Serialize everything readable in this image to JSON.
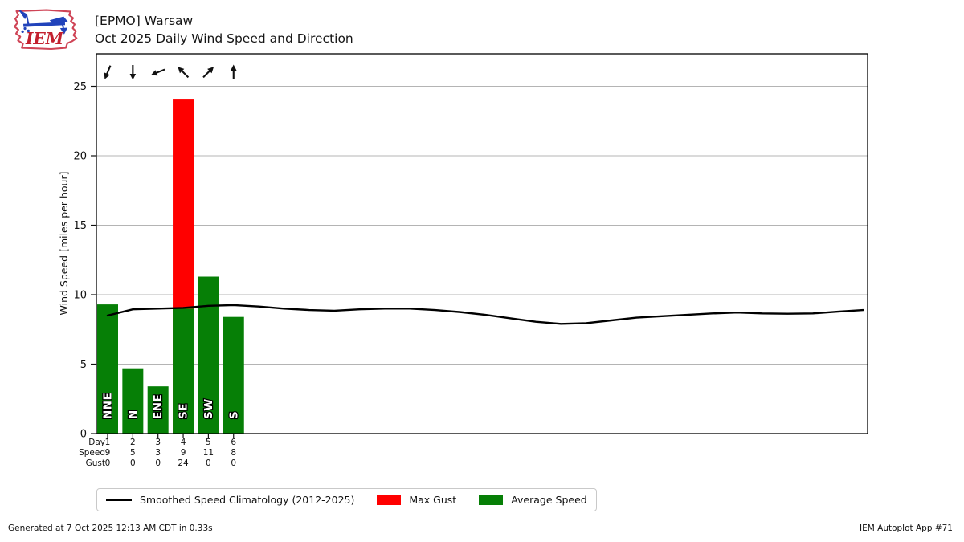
{
  "header": {
    "logo_text": "IEM",
    "title_line1": "[EPMO] Warsaw",
    "title_line2": "Oct 2025 Daily Wind Speed and Direction"
  },
  "chart_data": {
    "type": "bar",
    "title": "Oct 2025 Daily Wind Speed and Direction",
    "station": "[EPMO] Warsaw",
    "ylabel": "Wind Speed [miles per hour]",
    "ylim": [
      0,
      27.3
    ],
    "yticks": [
      0,
      5,
      10,
      15,
      20,
      25
    ],
    "grid": true,
    "legend_position": "bottom",
    "days_with_data": [
      1,
      2,
      3,
      4,
      5,
      6
    ],
    "series": [
      {
        "name": "Average Speed",
        "type": "bar",
        "color": "#067f06",
        "values": [
          9.3,
          4.7,
          3.4,
          9.0,
          11.3,
          8.4
        ]
      },
      {
        "name": "Max Gust",
        "type": "bar",
        "color": "#ff0000",
        "values": [
          0,
          0,
          0,
          24.1,
          0,
          0
        ]
      },
      {
        "name": "Smoothed Speed Climatology (2012-2025)",
        "type": "line",
        "color": "#000000",
        "x": [
          1,
          2,
          3,
          4,
          5,
          6,
          7,
          8,
          9,
          10,
          11,
          12,
          13,
          14,
          15,
          16,
          17,
          18,
          19,
          20,
          21,
          22,
          23,
          24,
          25,
          26,
          27,
          28,
          29,
          30,
          31
        ],
        "values": [
          8.5,
          8.95,
          9.0,
          9.05,
          9.2,
          9.25,
          9.15,
          9.0,
          8.9,
          8.85,
          8.95,
          9.0,
          9.0,
          8.9,
          8.75,
          8.55,
          8.3,
          8.05,
          7.9,
          7.95,
          8.15,
          8.35,
          8.45,
          8.55,
          8.65,
          8.72,
          8.65,
          8.63,
          8.65,
          8.78,
          8.9
        ]
      }
    ],
    "wind_directions": {
      "labels": [
        "NNE",
        "N",
        "ENE",
        "SE",
        "SW",
        "S"
      ],
      "degrees": [
        22.5,
        360,
        67.5,
        135,
        225,
        180
      ]
    },
    "table": {
      "row_labels": [
        "Day",
        "Speed",
        "Gust"
      ],
      "rows": [
        [
          "1",
          "2",
          "3",
          "4",
          "5",
          "6"
        ],
        [
          "9",
          "5",
          "3",
          "9",
          "11",
          "8"
        ],
        [
          "0",
          "0",
          "0",
          "24",
          "0",
          "0"
        ]
      ]
    }
  },
  "legend": {
    "items": [
      {
        "label": "Smoothed Speed Climatology (2012-2025)",
        "swatch": "line",
        "color": "#000000"
      },
      {
        "label": "Max Gust",
        "swatch": "rect",
        "color": "#ff0000"
      },
      {
        "label": "Average Speed",
        "swatch": "rect",
        "color": "#067f06"
      }
    ]
  },
  "footer": {
    "left": "Generated at 7 Oct 2025 12:13 AM CDT in 0.33s",
    "right": "IEM Autoplot App #71"
  },
  "colors": {
    "avg_bar": "#067f06",
    "gust_bar": "#ff0000",
    "climatology_line": "#000000",
    "gridline": "#b4b4b4",
    "frame": "#000000",
    "logo_red": "#cf4456",
    "logo_text_red": "#c3202e",
    "logo_blue": "#2143bb"
  }
}
